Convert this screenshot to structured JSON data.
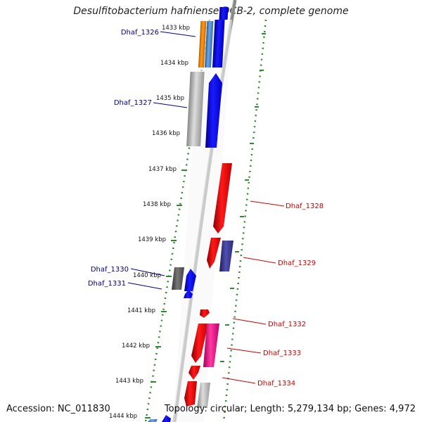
{
  "title": "Desulfitobacterium hafniense DCB-2, complete genome",
  "footer": {
    "accession": "Accession: NC_011830",
    "topology": "Topology: circular; Length: 5,279,134 bp; Genes: 4,972"
  },
  "colors": {
    "backbone": "#888888",
    "forward_gene": "#0000ff",
    "reverse_gene": "#ff0000",
    "left_label": "#00008b",
    "right_label": "#cc0000",
    "ticks": "#2e8b2e",
    "orange": "#ff8c00",
    "steel_blue": "#4a8ad0",
    "light_gray": "#bbbbbb",
    "dark_gray": "#555555",
    "purple": "#3b3b9a",
    "magenta": "#ff1493"
  },
  "scale_labels": [
    "1433 kbp",
    "1434 kbp",
    "1435 kbp",
    "1436 kbp",
    "1437 kbp",
    "1438 kbp",
    "1439 kbp",
    "1440 kbp",
    "1441 kbp",
    "1442 kbp",
    "1443 kbp",
    "1444 kbp"
  ],
  "gene_labels_left": [
    "Dhaf_1326",
    "Dhaf_1327",
    "Dhaf_1330",
    "Dhaf_1331"
  ],
  "gene_labels_right": [
    "Dhaf_1328",
    "Dhaf_1329",
    "Dhaf_1332",
    "Dhaf_1333",
    "Dhaf_1334"
  ]
}
